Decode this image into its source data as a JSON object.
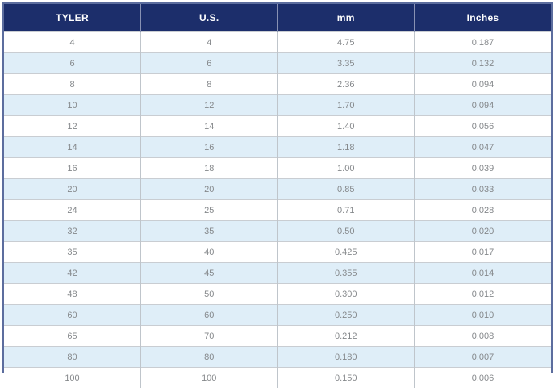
{
  "colors": {
    "header_bg": "#1c2e6b",
    "header_text": "#ffffff",
    "row_bg": "#ffffff",
    "row_alt_bg": "#dfeef8",
    "cell_text": "#85888b",
    "outer_border": "#5c6d9e",
    "grid_line": "#c9cdd2"
  },
  "chart_data": {
    "type": "table",
    "title": "",
    "columns": [
      "TYLER",
      "U.S.",
      "mm",
      "Inches"
    ],
    "rows": [
      [
        "4",
        "4",
        "4.75",
        "0.187"
      ],
      [
        "6",
        "6",
        "3.35",
        "0.132"
      ],
      [
        "8",
        "8",
        "2.36",
        "0.094"
      ],
      [
        "10",
        "12",
        "1.70",
        "0.094"
      ],
      [
        "12",
        "14",
        "1.40",
        "0.056"
      ],
      [
        "14",
        "16",
        "1.18",
        "0.047"
      ],
      [
        "16",
        "18",
        "1.00",
        "0.039"
      ],
      [
        "20",
        "20",
        "0.85",
        "0.033"
      ],
      [
        "24",
        "25",
        "0.71",
        "0.028"
      ],
      [
        "32",
        "35",
        "0.50",
        "0.020"
      ],
      [
        "35",
        "40",
        "0.425",
        "0.017"
      ],
      [
        "42",
        "45",
        "0.355",
        "0.014"
      ],
      [
        "48",
        "50",
        "0.300",
        "0.012"
      ],
      [
        "60",
        "60",
        "0.250",
        "0.010"
      ],
      [
        "65",
        "70",
        "0.212",
        "0.008"
      ],
      [
        "80",
        "80",
        "0.180",
        "0.007"
      ],
      [
        "100",
        "100",
        "0.150",
        "0.006"
      ]
    ],
    "layout": {
      "header_style": "navy background, white bold text",
      "striping": "alternate rows light blue starting at second data row",
      "column_widths_pct": [
        25,
        25,
        25,
        25
      ]
    }
  }
}
